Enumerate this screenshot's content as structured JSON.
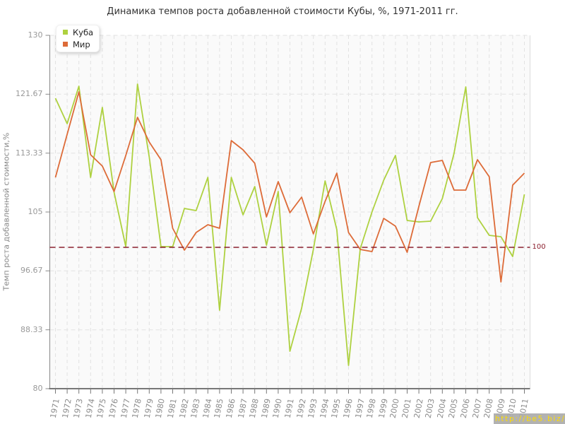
{
  "title": "Динамика темпов роста добавленной стоимости Кубы, %, 1971-2011 гг.",
  "watermark": "http://be5.biz/",
  "chart_data": {
    "type": "line",
    "title": "Динамика темпов роста добавленной стоимости Кубы, %, 1971-2011 гг.",
    "xlabel": "",
    "ylabel": "Темп роста добавленной стоимости,%",
    "ylim": [
      80,
      130
    ],
    "yticks": [
      80,
      88.33,
      96.67,
      105,
      113.33,
      121.67,
      130
    ],
    "ytick_labels": [
      "80",
      "88.33",
      "96.67",
      "105",
      "113.33",
      "121.67",
      "130"
    ],
    "grid": true,
    "legend_position": "top-left",
    "reference_line": {
      "value": 100,
      "label": "100",
      "color": "#8b1f2e"
    },
    "categories": [
      1971,
      1972,
      1973,
      1974,
      1975,
      1976,
      1977,
      1978,
      1979,
      1980,
      1981,
      1982,
      1983,
      1984,
      1985,
      1986,
      1987,
      1988,
      1989,
      1990,
      1991,
      1992,
      1993,
      1994,
      1995,
      1996,
      1997,
      1998,
      1999,
      2000,
      2001,
      2002,
      2003,
      2004,
      2005,
      2006,
      2007,
      2008,
      2009,
      2010,
      2011
    ],
    "series": [
      {
        "name": "Куба",
        "color": "#aed140",
        "values": [
          121.1,
          117.5,
          122.8,
          109.9,
          119.8,
          107.8,
          100.1,
          123.1,
          112.8,
          100.1,
          100.1,
          105.5,
          105.2,
          109.9,
          91.1,
          109.9,
          104.6,
          108.6,
          100.3,
          107.9,
          85.3,
          91.4,
          99.7,
          109.4,
          102.5,
          83.3,
          99.8,
          105.0,
          109.5,
          113.0,
          103.8,
          103.6,
          103.7,
          106.9,
          113.3,
          122.7,
          104.2,
          101.7,
          101.5,
          98.7,
          107.5
        ]
      },
      {
        "name": "Мир",
        "color": "#dd6b38",
        "values": [
          109.9,
          116.0,
          122.0,
          113.1,
          111.5,
          107.9,
          113.0,
          118.4,
          114.9,
          112.4,
          102.7,
          99.6,
          102.1,
          103.2,
          102.7,
          115.1,
          113.8,
          111.9,
          104.3,
          109.3,
          104.9,
          107.1,
          101.9,
          106.5,
          110.5,
          102.1,
          99.7,
          99.4,
          104.1,
          103.0,
          99.3,
          105.8,
          112.0,
          112.3,
          108.1,
          108.1,
          112.4,
          110.0,
          95.1,
          108.8,
          110.5
        ]
      }
    ]
  },
  "colors": {
    "plot_bg": "#fafafa",
    "grid": "#e2e2e2",
    "axis": "#888888",
    "tick_text": "#999999",
    "title_text": "#333333"
  }
}
